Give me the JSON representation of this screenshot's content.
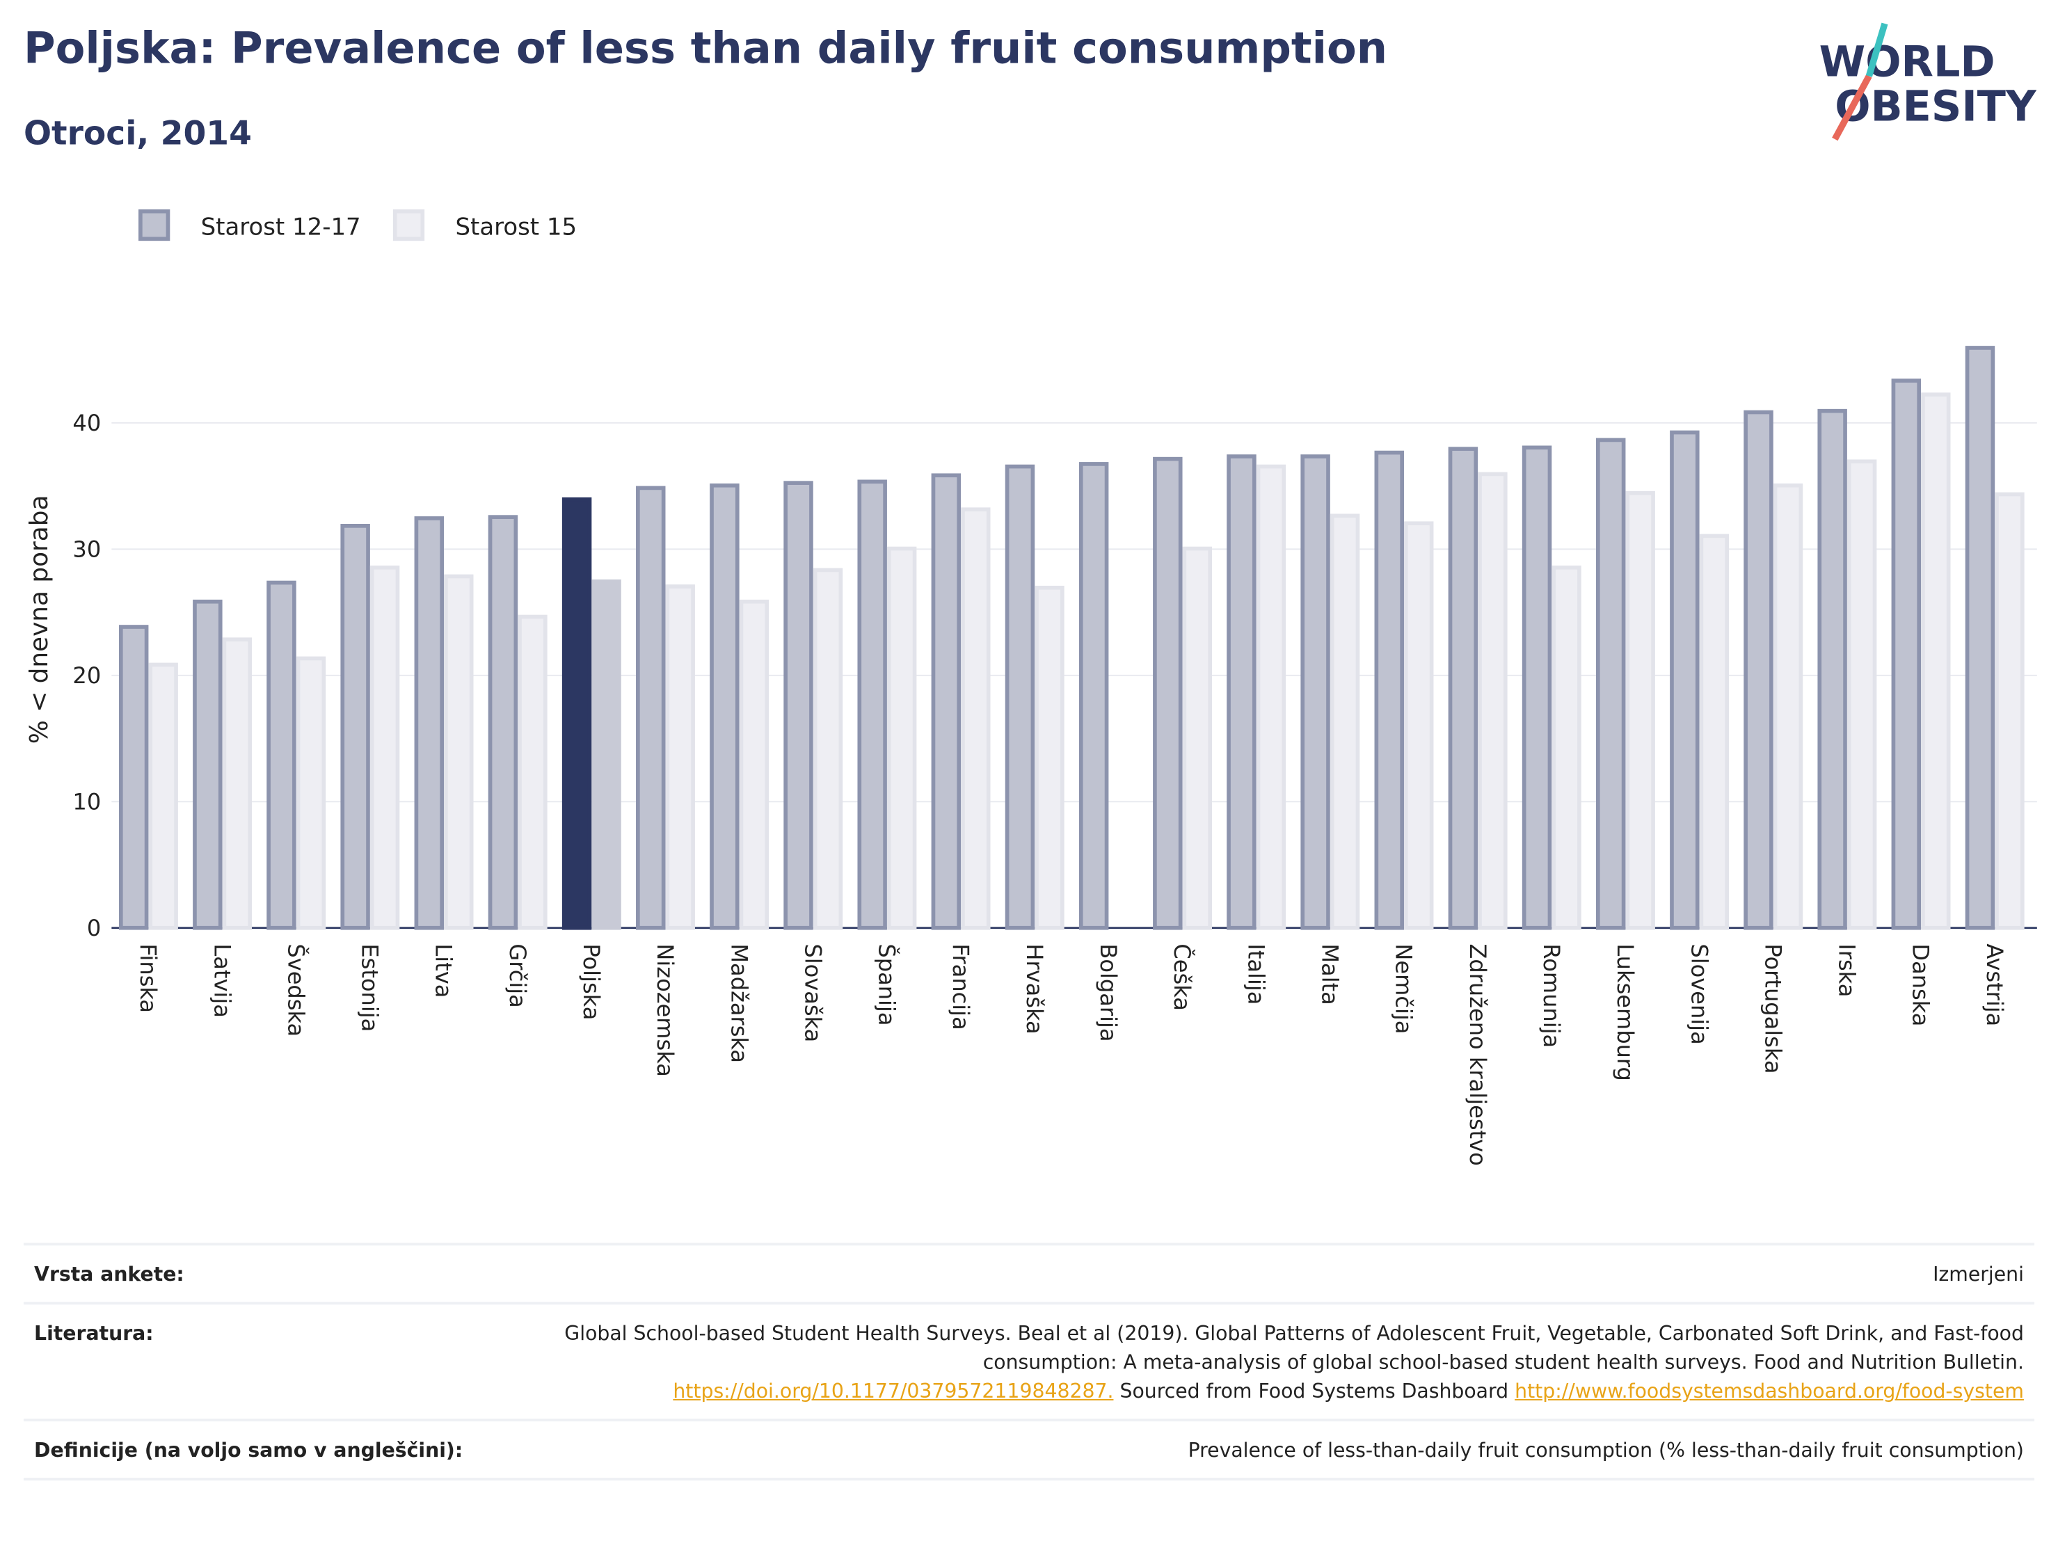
{
  "chart_data": {
    "type": "bar",
    "title": "Poljska: Prevalence of less than daily fruit consumption",
    "subtitle": "Otroci, 2014",
    "y_axis_label": "% < dnevna poraba",
    "categories": [
      "Finska",
      "Latvija",
      "Švedska",
      "Estonija",
      "Litva",
      "Grčija",
      "Poljska",
      "Nizozemska",
      "Madžarska",
      "Slovaška",
      "Španija",
      "Francija",
      "Hrvaška",
      "Bolgarija",
      "Češka",
      "Italija",
      "Malta",
      "Nemčija",
      "Združeno kraljestvo",
      "Romunija",
      "Luksemburg",
      "Slovenija",
      "Portugalska",
      "Irska",
      "Danska",
      "Avstrija"
    ],
    "series": [
      {
        "name": "Starost 12-17",
        "color": "#bfc2d0",
        "stroke": "#8c93ad",
        "highlight_color": "#2c3762",
        "values": [
          24,
          26,
          27.5,
          32,
          32.6,
          32.7,
          34.1,
          35,
          35.2,
          35.4,
          35.5,
          36,
          36.7,
          36.9,
          37.3,
          37.5,
          37.5,
          37.8,
          38.1,
          38.2,
          38.8,
          39.4,
          41,
          41.1,
          43.5,
          46.1
        ]
      },
      {
        "name": "Starost 15",
        "color": "#eeeef3",
        "stroke": "#e2e3ea",
        "highlight_color": "#c8cad6",
        "values": [
          21,
          23,
          21.5,
          28.7,
          28,
          24.8,
          27.6,
          27.2,
          26,
          28.5,
          30.2,
          33.3,
          27.1,
          null,
          30.2,
          36.7,
          32.8,
          32.2,
          36.1,
          28.7,
          34.6,
          31.2,
          35.2,
          37.1,
          42.4,
          34.5
        ]
      }
    ],
    "highlight_category": "Poljska",
    "ylim": [
      0,
      50
    ],
    "yticks": [
      0,
      10,
      20,
      30,
      40
    ],
    "grid": true,
    "legend": "top-left"
  },
  "logo": {
    "line1": "WORLD",
    "line2": "OBESITY"
  },
  "footer": {
    "rows": [
      {
        "label": "Vrsta ankete:",
        "value": "Izmerjeni"
      },
      {
        "label": "Literatura:",
        "parts": [
          {
            "text": "Global School-based Student Health Surveys. Beal et al (2019). Global Patterns of Adolescent Fruit, Vegetable, Carbonated Soft Drink, and Fast-food consumption: A meta-analysis of global school-based student health surveys. Food and Nutrition Bulletin."
          },
          {
            "text": "https://doi.org/10.1177/0379572119848287."
          },
          {
            "text": "Sourced from Food Systems Dashboard"
          },
          {
            "text": "http://www.foodsystemsdashboard.org/food-system"
          }
        ]
      },
      {
        "label": "Definicije (na voljo samo v angleščini):",
        "value": "Prevalence of less-than-daily fruit consumption (% less-than-daily fruit consumption)"
      }
    ]
  }
}
